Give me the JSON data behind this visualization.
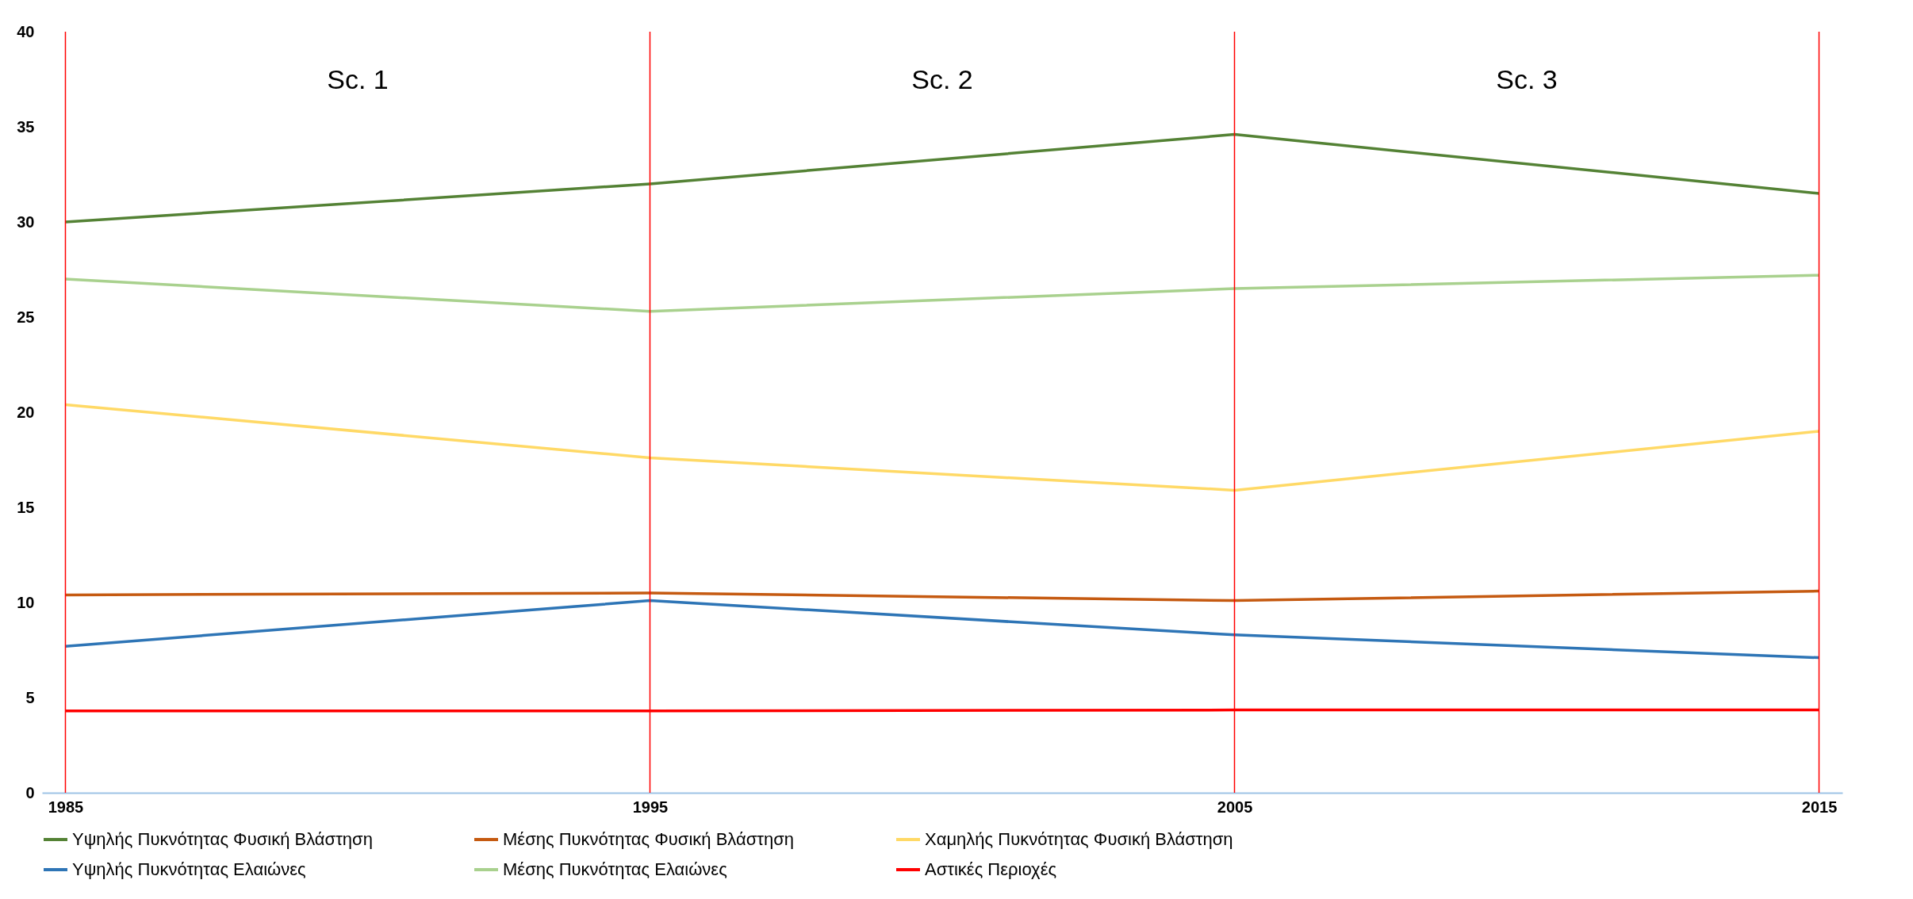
{
  "chart_data": {
    "type": "line",
    "x": [
      1985,
      1995,
      2005,
      2015
    ],
    "xlim": [
      1984.6,
      2015.4
    ],
    "xticks": [
      1985,
      1995,
      2005,
      2015
    ],
    "ylim": [
      0,
      40
    ],
    "yticks": [
      0,
      5,
      10,
      15,
      20,
      25,
      30,
      35,
      40
    ],
    "legend": "bottom",
    "series": [
      {
        "name": "Υψηλής Πυκνότητας Φυσική Βλάστηση",
        "color": "#548235",
        "values": [
          30,
          32,
          34.6,
          31.5
        ]
      },
      {
        "name": "Μέσης Πυκνότητας Φυσική Βλάστηση",
        "color": "#c55a11",
        "values": [
          10.4,
          10.5,
          10.1,
          10.6
        ]
      },
      {
        "name": "Χαμηλής Πυκνότητας Φυσική Βλάστηση",
        "color": "#ffd966",
        "values": [
          20.4,
          17.6,
          15.9,
          19
        ]
      },
      {
        "name": "Υψηλής Πυκνότητας Ελαιώνες",
        "color": "#2e75b6",
        "values": [
          7.7,
          10.1,
          8.3,
          7.1
        ]
      },
      {
        "name": "Μέσης Πυκνότητας Ελαιώνες",
        "color": "#a9d18e",
        "values": [
          27,
          25.3,
          26.5,
          27.2
        ]
      },
      {
        "name": "Αστικές Περιοχές",
        "color": "#ff0000",
        "values": [
          4.3,
          4.3,
          4.35,
          4.35
        ]
      }
    ],
    "ref_lines": [
      {
        "axis": "x",
        "value": 1985,
        "color": "#ff0000"
      },
      {
        "axis": "x",
        "value": 1995,
        "color": "#ff0000"
      },
      {
        "axis": "x",
        "value": 2005,
        "color": "#ff0000"
      },
      {
        "axis": "x",
        "value": 2015,
        "color": "#ff0000"
      }
    ],
    "annotations": [
      "Sc. 1",
      "Sc. 2",
      "Sc. 3"
    ]
  }
}
